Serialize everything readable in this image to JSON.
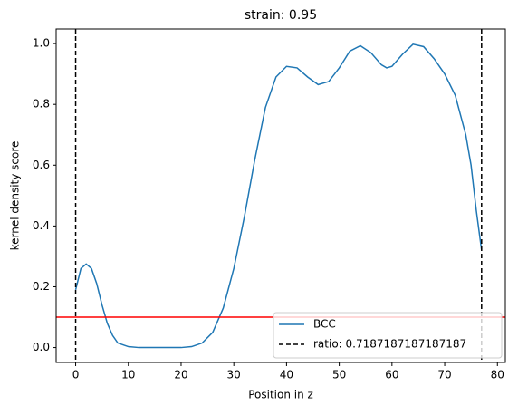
{
  "chart_data": {
    "type": "line",
    "title": "strain: 0.95",
    "x_label": "Position in z",
    "y_label": "kernel density score",
    "x": [
      0,
      1,
      2,
      3,
      4,
      5,
      6,
      7,
      8,
      10,
      12,
      15,
      20,
      22,
      24,
      26,
      28,
      30,
      32,
      34,
      36,
      38,
      40,
      42,
      44,
      46,
      48,
      50,
      52,
      54,
      56,
      58,
      59,
      60,
      62,
      64,
      66,
      68,
      70,
      72,
      74,
      75,
      76,
      77
    ],
    "series": [
      {
        "name": "BCC",
        "color": "#1f77b4",
        "values": [
          0.19,
          0.26,
          0.275,
          0.26,
          0.21,
          0.14,
          0.08,
          0.04,
          0.015,
          0.003,
          0.0,
          0.0,
          0.0,
          0.003,
          0.015,
          0.05,
          0.13,
          0.26,
          0.43,
          0.62,
          0.79,
          0.89,
          0.925,
          0.92,
          0.89,
          0.865,
          0.875,
          0.92,
          0.975,
          0.993,
          0.97,
          0.93,
          0.92,
          0.925,
          0.965,
          0.998,
          0.99,
          0.95,
          0.9,
          0.83,
          0.7,
          0.6,
          0.45,
          0.32
        ]
      }
    ],
    "vlines": {
      "name": "ratio: 0.7187187187187187",
      "color": "#000000",
      "x": [
        0,
        77
      ]
    },
    "hline": {
      "value": 0.1,
      "color": "#ff0000"
    },
    "xlim": [
      -3.7,
      81.5
    ],
    "ylim": [
      -0.049,
      1.048
    ],
    "xticks": [
      0,
      10,
      20,
      30,
      40,
      50,
      60,
      70,
      80
    ],
    "yticks": [
      {
        "value": 0,
        "label": "0.0"
      },
      0.2,
      0.4,
      0.6,
      0.8,
      {
        "value": 1,
        "label": "1.0"
      }
    ],
    "legend": "lower right"
  }
}
